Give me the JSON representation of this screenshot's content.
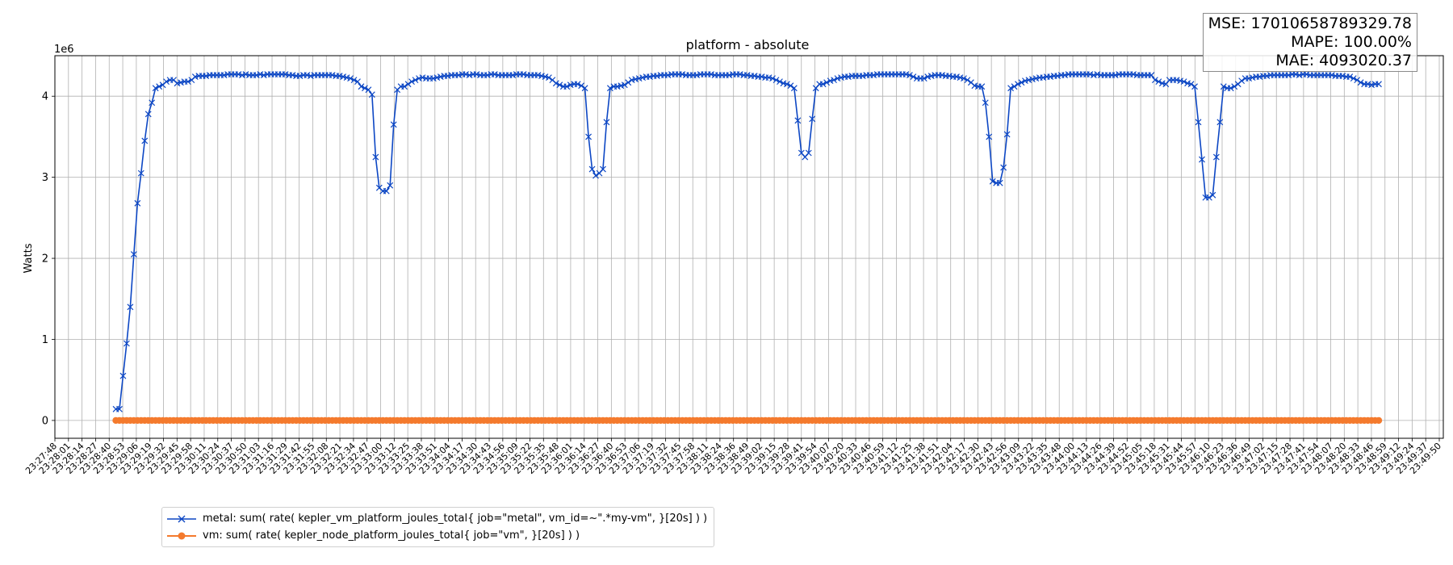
{
  "chart_data": {
    "type": "line",
    "title": "platform - absolute",
    "ylabel": "Watts",
    "xlabel": "",
    "y_offset_label": "1e6",
    "ylim": [
      -0.22,
      4.5
    ],
    "y_ticks": [
      0,
      1,
      2,
      3,
      4
    ],
    "grid": true,
    "legend_placement": "bottom-left, below axes",
    "x_tick_labels": [
      "23:27:48",
      "23:28:01",
      "23:28:14",
      "23:28:27",
      "23:28:40",
      "23:28:53",
      "23:29:06",
      "23:29:19",
      "23:29:32",
      "23:29:45",
      "23:29:58",
      "23:30:11",
      "23:30:24",
      "23:30:37",
      "23:30:50",
      "23:31:03",
      "23:31:16",
      "23:31:29",
      "23:31:42",
      "23:31:55",
      "23:32:08",
      "23:32:21",
      "23:32:34",
      "23:32:47",
      "23:33:00",
      "23:33:12",
      "23:33:25",
      "23:33:38",
      "23:33:51",
      "23:34:04",
      "23:34:17",
      "23:34:30",
      "23:34:43",
      "23:34:56",
      "23:35:09",
      "23:35:22",
      "23:35:35",
      "23:35:48",
      "23:36:01",
      "23:36:14",
      "23:36:27",
      "23:36:40",
      "23:36:53",
      "23:37:06",
      "23:37:19",
      "23:37:32",
      "23:37:45",
      "23:37:58",
      "23:38:11",
      "23:38:24",
      "23:38:36",
      "23:38:49",
      "23:39:02",
      "23:39:15",
      "23:39:28",
      "23:39:41",
      "23:39:54",
      "23:40:07",
      "23:40:20",
      "23:40:33",
      "23:40:46",
      "23:40:59",
      "23:41:12",
      "23:41:25",
      "23:41:38",
      "23:41:51",
      "23:42:04",
      "23:42:17",
      "23:42:30",
      "23:42:43",
      "23:42:56",
      "23:43:09",
      "23:43:22",
      "23:43:35",
      "23:43:48",
      "23:44:00",
      "23:44:13",
      "23:44:26",
      "23:44:39",
      "23:44:52",
      "23:45:05",
      "23:45:18",
      "23:45:31",
      "23:45:44",
      "23:45:57",
      "23:46:10",
      "23:46:23",
      "23:46:36",
      "23:46:49",
      "23:47:02",
      "23:47:15",
      "23:47:28",
      "23:47:41",
      "23:47:54",
      "23:48:07",
      "23:48:20",
      "23:48:33",
      "23:48:46",
      "23:48:59",
      "23:49:12",
      "23:49:24",
      "23:49:37",
      "23:49:50"
    ],
    "series": [
      {
        "name": "metal: sum( rate( kepler_vm_platform_joules_total{ job=\"metal\", vm_id=~\".*my-vm\", }[20s] ) )",
        "color": "#0d47c4",
        "marker": "x",
        "values": [
          0.14,
          0.14,
          0.55,
          0.95,
          1.4,
          2.05,
          2.68,
          3.05,
          3.45,
          3.78,
          3.92,
          4.1,
          4.12,
          4.14,
          4.18,
          4.2,
          4.2,
          4.16,
          4.17,
          4.18,
          4.18,
          4.2,
          4.24,
          4.25,
          4.25,
          4.25,
          4.26,
          4.26,
          4.26,
          4.26,
          4.26,
          4.27,
          4.27,
          4.27,
          4.27,
          4.26,
          4.27,
          4.26,
          4.26,
          4.26,
          4.27,
          4.26,
          4.27,
          4.27,
          4.27,
          4.27,
          4.27,
          4.27,
          4.26,
          4.26,
          4.25,
          4.25,
          4.26,
          4.26,
          4.25,
          4.26,
          4.26,
          4.26,
          4.26,
          4.26,
          4.26,
          4.25,
          4.25,
          4.24,
          4.23,
          4.22,
          4.2,
          4.18,
          4.12,
          4.1,
          4.08,
          4.02,
          3.25,
          2.87,
          2.83,
          2.83,
          2.9,
          3.65,
          4.08,
          4.12,
          4.12,
          4.15,
          4.18,
          4.2,
          4.22,
          4.23,
          4.22,
          4.22,
          4.22,
          4.23,
          4.24,
          4.25,
          4.25,
          4.26,
          4.26,
          4.26,
          4.27,
          4.27,
          4.26,
          4.27,
          4.27,
          4.26,
          4.26,
          4.26,
          4.27,
          4.27,
          4.26,
          4.26,
          4.26,
          4.26,
          4.26,
          4.27,
          4.27,
          4.27,
          4.26,
          4.26,
          4.26,
          4.26,
          4.25,
          4.24,
          4.23,
          4.2,
          4.16,
          4.14,
          4.12,
          4.12,
          4.14,
          4.15,
          4.15,
          4.13,
          4.1,
          3.5,
          3.1,
          3.02,
          3.05,
          3.1,
          3.68,
          4.1,
          4.12,
          4.12,
          4.13,
          4.14,
          4.17,
          4.2,
          4.21,
          4.22,
          4.23,
          4.24,
          4.24,
          4.25,
          4.25,
          4.26,
          4.26,
          4.26,
          4.27,
          4.27,
          4.27,
          4.27,
          4.26,
          4.26,
          4.26,
          4.26,
          4.27,
          4.27,
          4.27,
          4.27,
          4.26,
          4.26,
          4.26,
          4.26,
          4.26,
          4.27,
          4.27,
          4.27,
          4.26,
          4.26,
          4.25,
          4.25,
          4.24,
          4.24,
          4.23,
          4.23,
          4.22,
          4.2,
          4.18,
          4.16,
          4.15,
          4.13,
          4.1,
          3.7,
          3.3,
          3.25,
          3.3,
          3.72,
          4.1,
          4.15,
          4.15,
          4.17,
          4.19,
          4.2,
          4.22,
          4.23,
          4.24,
          4.24,
          4.25,
          4.25,
          4.25,
          4.25,
          4.26,
          4.26,
          4.26,
          4.27,
          4.27,
          4.27,
          4.27,
          4.27,
          4.27,
          4.27,
          4.27,
          4.27,
          4.26,
          4.24,
          4.22,
          4.22,
          4.22,
          4.24,
          4.25,
          4.26,
          4.26,
          4.26,
          4.25,
          4.25,
          4.24,
          4.24,
          4.23,
          4.22,
          4.2,
          4.17,
          4.13,
          4.12,
          4.12,
          3.92,
          3.5,
          2.95,
          2.93,
          2.93,
          3.12,
          3.53,
          4.1,
          4.12,
          4.15,
          4.17,
          4.19,
          4.2,
          4.21,
          4.22,
          4.23,
          4.23,
          4.24,
          4.24,
          4.25,
          4.25,
          4.26,
          4.26,
          4.27,
          4.27,
          4.27,
          4.27,
          4.27,
          4.27,
          4.27,
          4.26,
          4.27,
          4.26,
          4.26,
          4.26,
          4.26,
          4.26,
          4.27,
          4.27,
          4.27,
          4.27,
          4.27,
          4.26,
          4.26,
          4.26,
          4.26,
          4.26,
          4.2,
          4.18,
          4.16,
          4.15,
          4.2,
          4.2,
          4.2,
          4.19,
          4.18,
          4.16,
          4.15,
          4.12,
          3.68,
          3.22,
          2.75,
          2.75,
          2.78,
          3.25,
          3.68,
          4.12,
          4.1,
          4.1,
          4.12,
          4.15,
          4.19,
          4.22,
          4.22,
          4.23,
          4.24,
          4.24,
          4.25,
          4.25,
          4.26,
          4.26,
          4.26,
          4.26,
          4.26,
          4.26,
          4.27,
          4.27,
          4.26,
          4.27,
          4.27,
          4.26,
          4.26,
          4.26,
          4.26,
          4.26,
          4.26,
          4.26,
          4.25,
          4.25,
          4.25,
          4.24,
          4.24,
          4.22,
          4.2,
          4.17,
          4.15,
          4.15,
          4.14,
          4.15,
          4.15
        ]
      },
      {
        "name": "vm: sum( rate( kepler_node_platform_joules_total{ job=\"vm\", }[20s] ) )",
        "color": "#f47a2d",
        "marker": "o",
        "values_constant": 0
      }
    ],
    "annotation": {
      "mse": "MSE: 17010658789329.78",
      "mape": "MAPE: 100.00%",
      "mae": "MAE: 4093020.37"
    }
  }
}
